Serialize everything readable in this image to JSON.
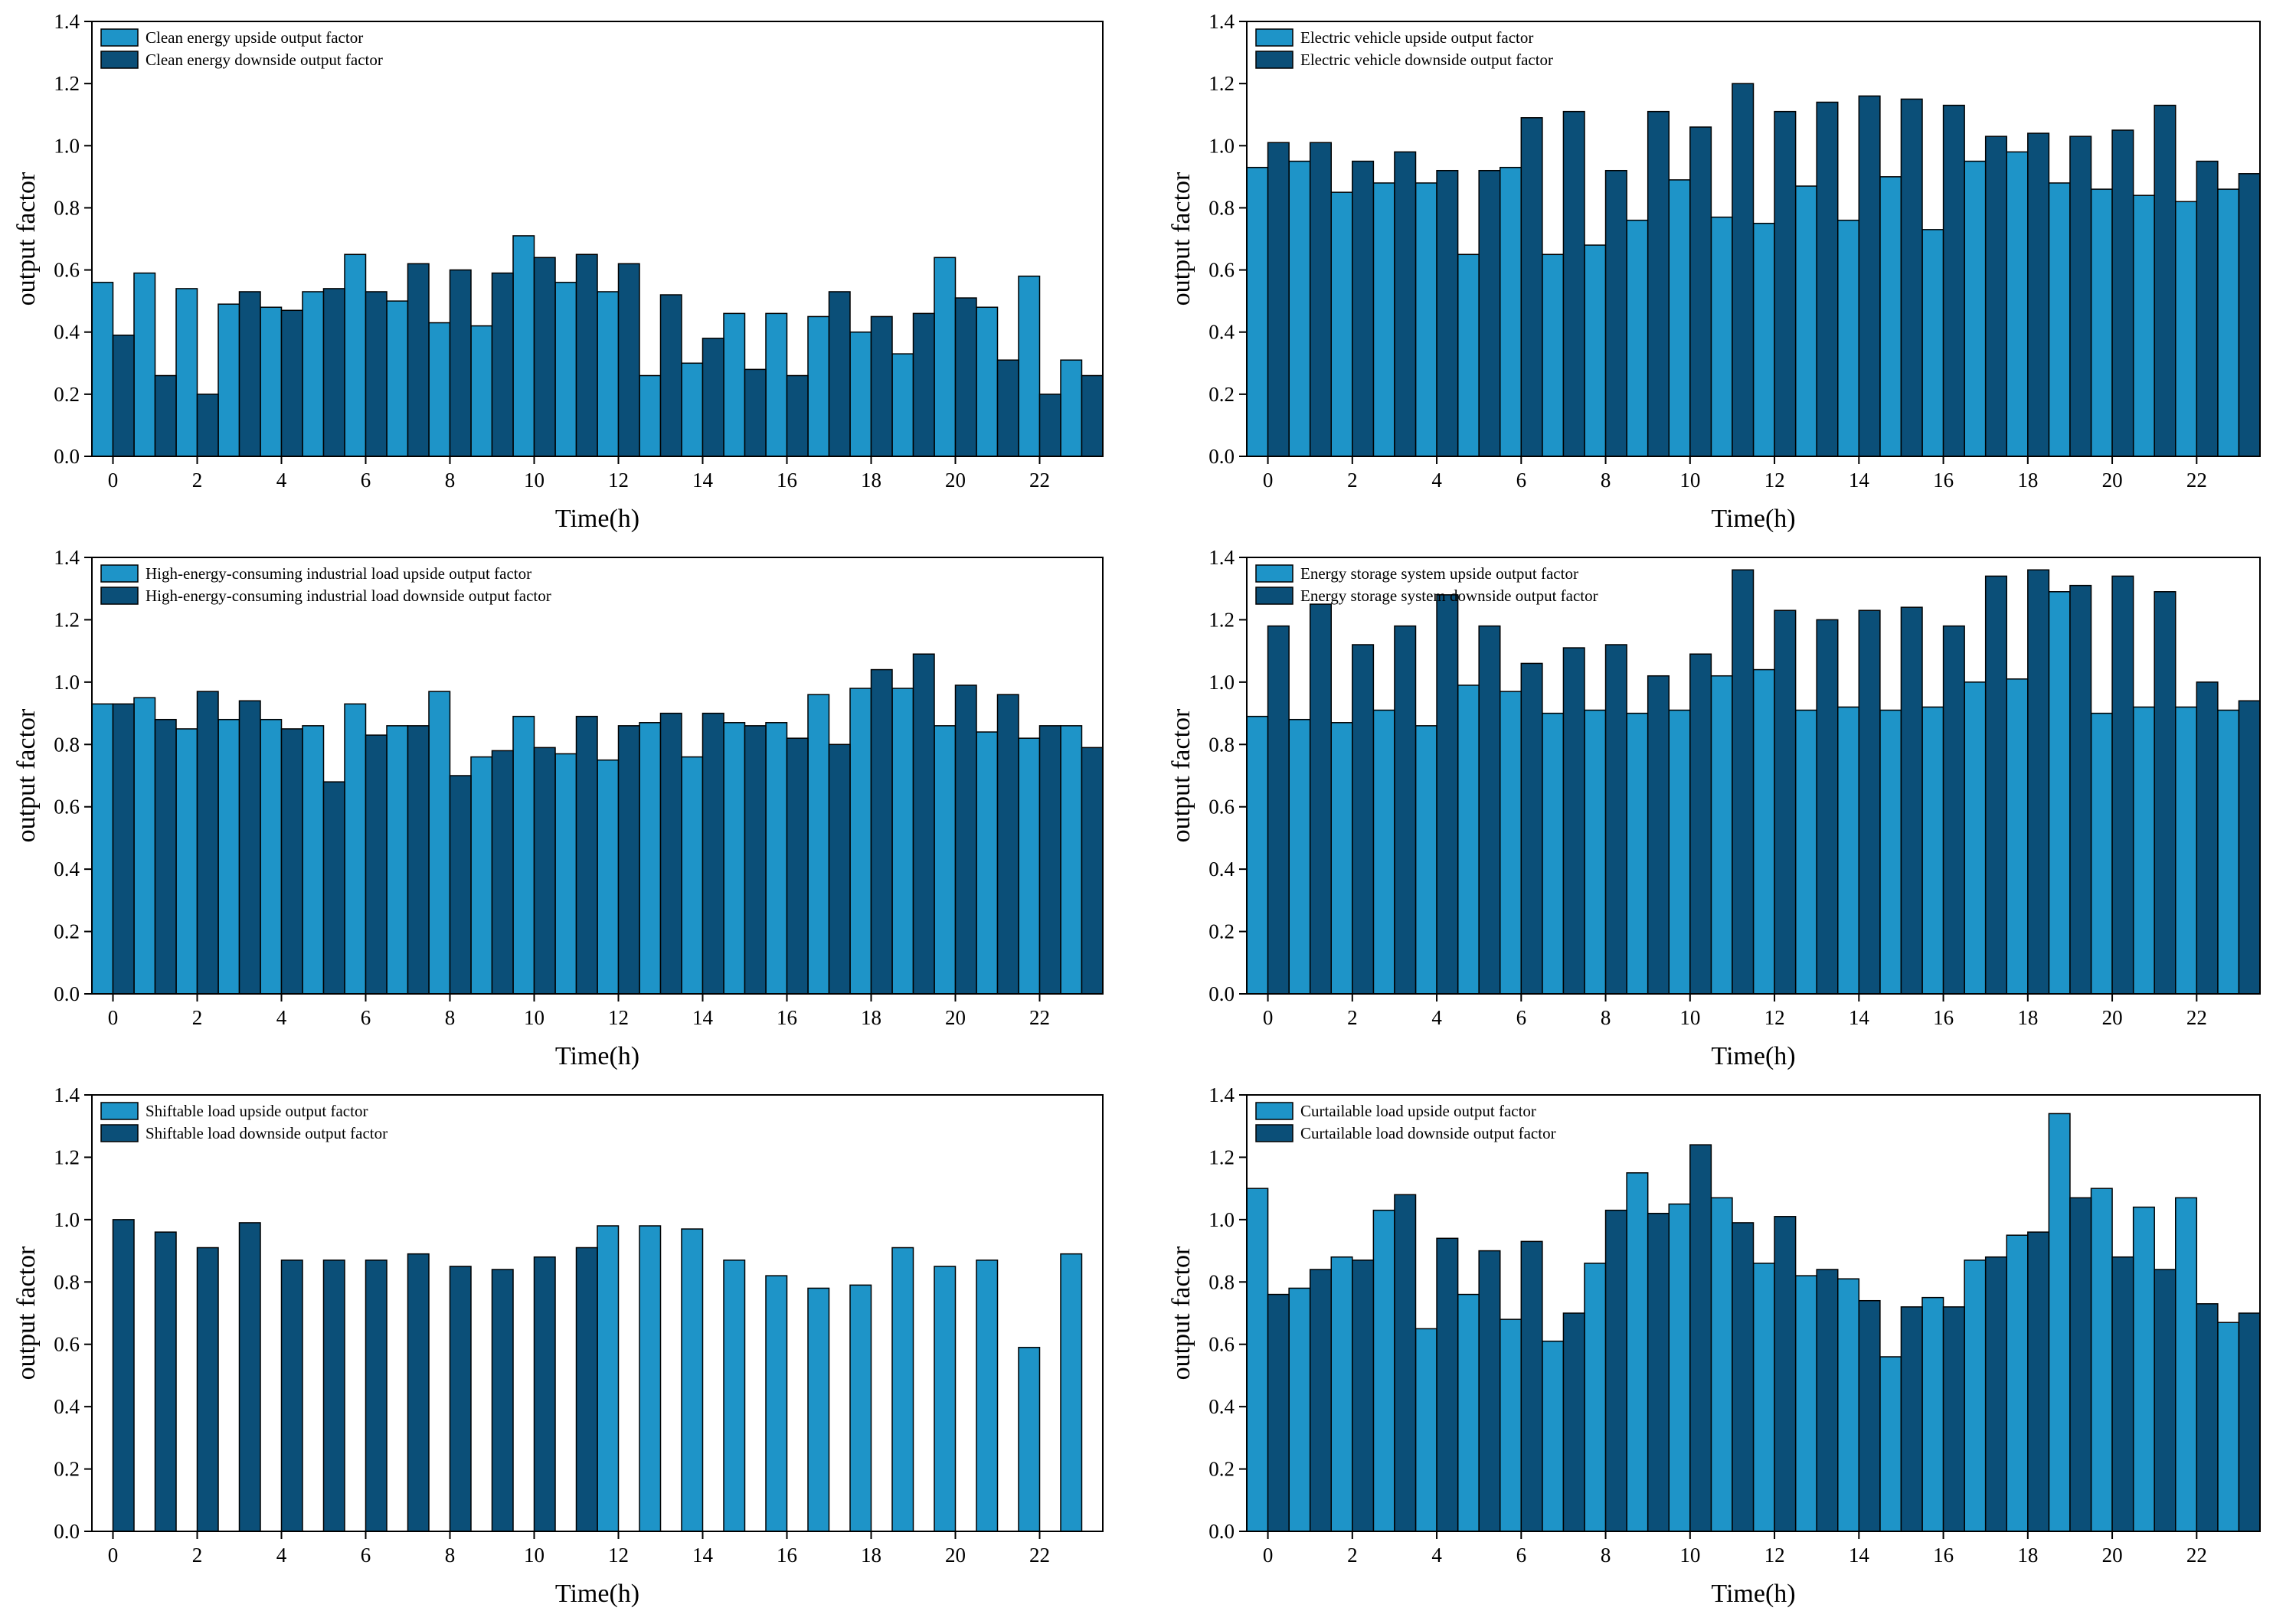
{
  "chart_data": [
    {
      "type": "bar",
      "xlabel": "Time(h)",
      "ylabel": "output factor",
      "legend": "upper left",
      "x": [
        0,
        1,
        2,
        3,
        4,
        5,
        6,
        7,
        8,
        9,
        10,
        11,
        12,
        13,
        14,
        15,
        16,
        17,
        18,
        19,
        20,
        21,
        22,
        23
      ],
      "xlim": [
        -0.5,
        23.5
      ],
      "xticks": [
        0,
        2,
        4,
        6,
        8,
        10,
        12,
        14,
        16,
        18,
        20,
        22
      ],
      "ylim": [
        0,
        1.4
      ],
      "yticks": [
        {
          "value": 0,
          "label": "0.0"
        },
        0.2,
        0.4,
        0.6,
        0.8,
        {
          "value": 1,
          "label": "1.0"
        },
        1.2,
        1.4
      ],
      "series": [
        {
          "name": "Clean energy upside output factor",
          "color": "#1e94c8",
          "values": [
            0.56,
            0.59,
            0.54,
            0.49,
            0.48,
            0.53,
            0.65,
            0.5,
            0.43,
            0.42,
            0.71,
            0.56,
            0.53,
            0.26,
            0.3,
            0.46,
            0.46,
            0.45,
            0.4,
            0.33,
            0.64,
            0.48,
            0.58,
            0.31
          ]
        },
        {
          "name": "Clean energy downside output factor",
          "color": "#0b4f78",
          "values": [
            0.39,
            0.26,
            0.2,
            0.53,
            0.47,
            0.54,
            0.53,
            0.62,
            0.6,
            0.59,
            0.64,
            0.65,
            0.62,
            0.52,
            0.38,
            0.28,
            0.26,
            0.53,
            0.45,
            0.46,
            0.51,
            0.31,
            0.2,
            0.26
          ]
        }
      ]
    },
    {
      "type": "bar",
      "xlabel": "Time(h)",
      "ylabel": "output factor",
      "legend": "upper left",
      "x": [
        0,
        1,
        2,
        3,
        4,
        5,
        6,
        7,
        8,
        9,
        10,
        11,
        12,
        13,
        14,
        15,
        16,
        17,
        18,
        19,
        20,
        21,
        22,
        23
      ],
      "xlim": [
        -0.5,
        23.5
      ],
      "xticks": [
        0,
        2,
        4,
        6,
        8,
        10,
        12,
        14,
        16,
        18,
        20,
        22
      ],
      "ylim": [
        0,
        1.4
      ],
      "yticks": [
        {
          "value": 0,
          "label": "0.0"
        },
        0.2,
        0.4,
        0.6,
        0.8,
        {
          "value": 1,
          "label": "1.0"
        },
        1.2,
        1.4
      ],
      "series": [
        {
          "name": "Electric vehicle upside output factor",
          "color": "#1e94c8",
          "values": [
            0.93,
            0.95,
            0.85,
            0.88,
            0.88,
            0.65,
            0.93,
            0.65,
            0.68,
            0.76,
            0.89,
            0.77,
            0.75,
            0.87,
            0.76,
            0.9,
            0.73,
            0.95,
            0.98,
            0.88,
            0.86,
            0.84,
            0.82,
            0.86
          ]
        },
        {
          "name": "Electric vehicle downside output factor",
          "color": "#0b4f78",
          "values": [
            1.01,
            1.01,
            0.95,
            0.98,
            0.92,
            0.92,
            1.09,
            1.11,
            0.92,
            1.11,
            1.06,
            1.2,
            1.11,
            1.14,
            1.16,
            1.15,
            1.13,
            1.03,
            1.04,
            1.03,
            1.05,
            1.13,
            0.95,
            0.91
          ]
        }
      ]
    },
    {
      "type": "bar",
      "xlabel": "Time(h)",
      "ylabel": "output factor",
      "legend": "upper left",
      "x": [
        0,
        1,
        2,
        3,
        4,
        5,
        6,
        7,
        8,
        9,
        10,
        11,
        12,
        13,
        14,
        15,
        16,
        17,
        18,
        19,
        20,
        21,
        22,
        23
      ],
      "xlim": [
        -0.5,
        23.5
      ],
      "xticks": [
        0,
        2,
        4,
        6,
        8,
        10,
        12,
        14,
        16,
        18,
        20,
        22
      ],
      "ylim": [
        0,
        1.4
      ],
      "yticks": [
        {
          "value": 0,
          "label": "0.0"
        },
        0.2,
        0.4,
        0.6,
        0.8,
        {
          "value": 1,
          "label": "1.0"
        },
        1.2,
        1.4
      ],
      "series": [
        {
          "name": "High-energy-consuming industrial load upside output factor",
          "color": "#1e94c8",
          "values": [
            0.93,
            0.95,
            0.85,
            0.88,
            0.88,
            0.86,
            0.93,
            0.86,
            0.97,
            0.76,
            0.89,
            0.77,
            0.75,
            0.87,
            0.76,
            0.87,
            0.87,
            0.96,
            0.98,
            0.98,
            0.86,
            0.84,
            0.82,
            0.86
          ]
        },
        {
          "name": "High-energy-consuming industrial load downside output factor",
          "color": "#0b4f78",
          "values": [
            0.93,
            0.88,
            0.97,
            0.94,
            0.85,
            0.68,
            0.83,
            0.86,
            0.7,
            0.78,
            0.79,
            0.89,
            0.86,
            0.9,
            0.9,
            0.86,
            0.82,
            0.8,
            1.04,
            1.09,
            0.99,
            0.96,
            0.86,
            0.79
          ]
        }
      ]
    },
    {
      "type": "bar",
      "xlabel": "Time(h)",
      "ylabel": "output factor",
      "legend": "upper left",
      "x": [
        0,
        1,
        2,
        3,
        4,
        5,
        6,
        7,
        8,
        9,
        10,
        11,
        12,
        13,
        14,
        15,
        16,
        17,
        18,
        19,
        20,
        21,
        22,
        23
      ],
      "xlim": [
        -0.5,
        23.5
      ],
      "xticks": [
        0,
        2,
        4,
        6,
        8,
        10,
        12,
        14,
        16,
        18,
        20,
        22
      ],
      "ylim": [
        0,
        1.4
      ],
      "yticks": [
        {
          "value": 0,
          "label": "0.0"
        },
        0.2,
        0.4,
        0.6,
        0.8,
        {
          "value": 1,
          "label": "1.0"
        },
        1.2,
        1.4
      ],
      "series": [
        {
          "name": "Energy storage system upside output factor",
          "color": "#1e94c8",
          "values": [
            0.89,
            0.88,
            0.87,
            0.91,
            0.86,
            0.99,
            0.97,
            0.9,
            0.91,
            0.9,
            0.91,
            1.02,
            1.04,
            0.91,
            0.92,
            0.91,
            0.92,
            1.0,
            1.01,
            1.29,
            0.9,
            0.92,
            0.92,
            0.91
          ]
        },
        {
          "name": "Energy storage system downside output factor",
          "color": "#0b4f78",
          "values": [
            1.18,
            1.25,
            1.12,
            1.18,
            1.28,
            1.18,
            1.06,
            1.11,
            1.12,
            1.02,
            1.09,
            1.36,
            1.23,
            1.2,
            1.23,
            1.24,
            1.18,
            1.34,
            1.36,
            1.31,
            1.34,
            1.29,
            1.0,
            0.94
          ]
        }
      ]
    },
    {
      "type": "bar",
      "xlabel": "Time(h)",
      "ylabel": "output factor",
      "legend": "upper left",
      "x": [
        0,
        1,
        2,
        3,
        4,
        5,
        6,
        7,
        8,
        9,
        10,
        11,
        12,
        13,
        14,
        15,
        16,
        17,
        18,
        19,
        20,
        21,
        22,
        23
      ],
      "xlim": [
        -0.5,
        23.5
      ],
      "xticks": [
        0,
        2,
        4,
        6,
        8,
        10,
        12,
        14,
        16,
        18,
        20,
        22
      ],
      "ylim": [
        0,
        1.4
      ],
      "yticks": [
        {
          "value": 0,
          "label": "0.0"
        },
        0.2,
        0.4,
        0.6,
        0.8,
        {
          "value": 1,
          "label": "1.0"
        },
        1.2,
        1.4
      ],
      "series": [
        {
          "name": "Shiftable load upside output factor",
          "color": "#1e94c8",
          "values": [
            0,
            0,
            0,
            0,
            0,
            0,
            0,
            0,
            0,
            0,
            0,
            0,
            0.98,
            0.98,
            0.97,
            0.87,
            0.82,
            0.78,
            0.79,
            0.91,
            0.85,
            0.87,
            0.59,
            0.89
          ]
        },
        {
          "name": "Shiftable load downside output factor",
          "color": "#0b4f78",
          "values": [
            1.0,
            0.96,
            0.91,
            0.99,
            0.87,
            0.87,
            0.87,
            0.89,
            0.85,
            0.84,
            0.88,
            0.91,
            0,
            0,
            0,
            0,
            0,
            0,
            0,
            0,
            0,
            0,
            0,
            0
          ]
        }
      ]
    },
    {
      "type": "bar",
      "xlabel": "Time(h)",
      "ylabel": "output factor",
      "legend": "upper left",
      "x": [
        0,
        1,
        2,
        3,
        4,
        5,
        6,
        7,
        8,
        9,
        10,
        11,
        12,
        13,
        14,
        15,
        16,
        17,
        18,
        19,
        20,
        21,
        22,
        23
      ],
      "xlim": [
        -0.5,
        23.5
      ],
      "xticks": [
        0,
        2,
        4,
        6,
        8,
        10,
        12,
        14,
        16,
        18,
        20,
        22
      ],
      "ylim": [
        0,
        1.4
      ],
      "yticks": [
        {
          "value": 0,
          "label": "0.0"
        },
        0.2,
        0.4,
        0.6,
        0.8,
        {
          "value": 1,
          "label": "1.0"
        },
        1.2,
        1.4
      ],
      "series": [
        {
          "name": "Curtailable load upside output factor",
          "color": "#1e94c8",
          "values": [
            1.1,
            0.78,
            0.88,
            1.03,
            0.65,
            0.76,
            0.68,
            0.61,
            0.86,
            1.15,
            1.05,
            1.07,
            0.86,
            0.82,
            0.81,
            0.56,
            0.75,
            0.87,
            0.95,
            1.34,
            1.1,
            1.04,
            1.07,
            0.67
          ]
        },
        {
          "name": "Curtailable load downside output factor",
          "color": "#0b4f78",
          "values": [
            0.76,
            0.84,
            0.87,
            1.08,
            0.94,
            0.9,
            0.93,
            0.7,
            1.03,
            1.02,
            1.24,
            0.99,
            1.01,
            0.84,
            0.74,
            0.72,
            0.72,
            0.88,
            0.96,
            1.07,
            0.88,
            0.84,
            0.73,
            0.7
          ]
        }
      ]
    }
  ]
}
